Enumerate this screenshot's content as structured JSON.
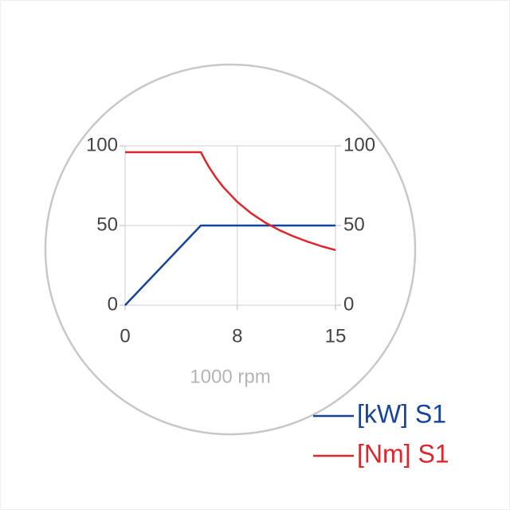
{
  "chart_data": {
    "type": "line",
    "x_label": "1000 rpm",
    "x": [
      0,
      5.4,
      5.7,
      6,
      6.5,
      7,
      8,
      9,
      10,
      11,
      12,
      13,
      14,
      15
    ],
    "series": [
      {
        "name": "[kW] S1",
        "color": "#17449a",
        "values": [
          0,
          50,
          50,
          50,
          50,
          50,
          50,
          50,
          50,
          50,
          50,
          50,
          50,
          50
        ]
      },
      {
        "name": "[Nm] S1",
        "color": "#e0262c",
        "axis": "y2",
        "values": [
          96,
          96,
          91,
          86.4,
          79.8,
          74.1,
          64.8,
          57.6,
          51.8,
          47.1,
          43.2,
          39.9,
          37,
          34.6
        ]
      }
    ],
    "xlim": [
      0,
      15
    ],
    "xticks": [
      0,
      8,
      15
    ],
    "ylim": [
      0,
      100
    ],
    "yticks": [
      0,
      50,
      100
    ],
    "y2lim": [
      0,
      100
    ],
    "y2ticks": [
      0,
      50,
      100
    ],
    "grid": true
  }
}
